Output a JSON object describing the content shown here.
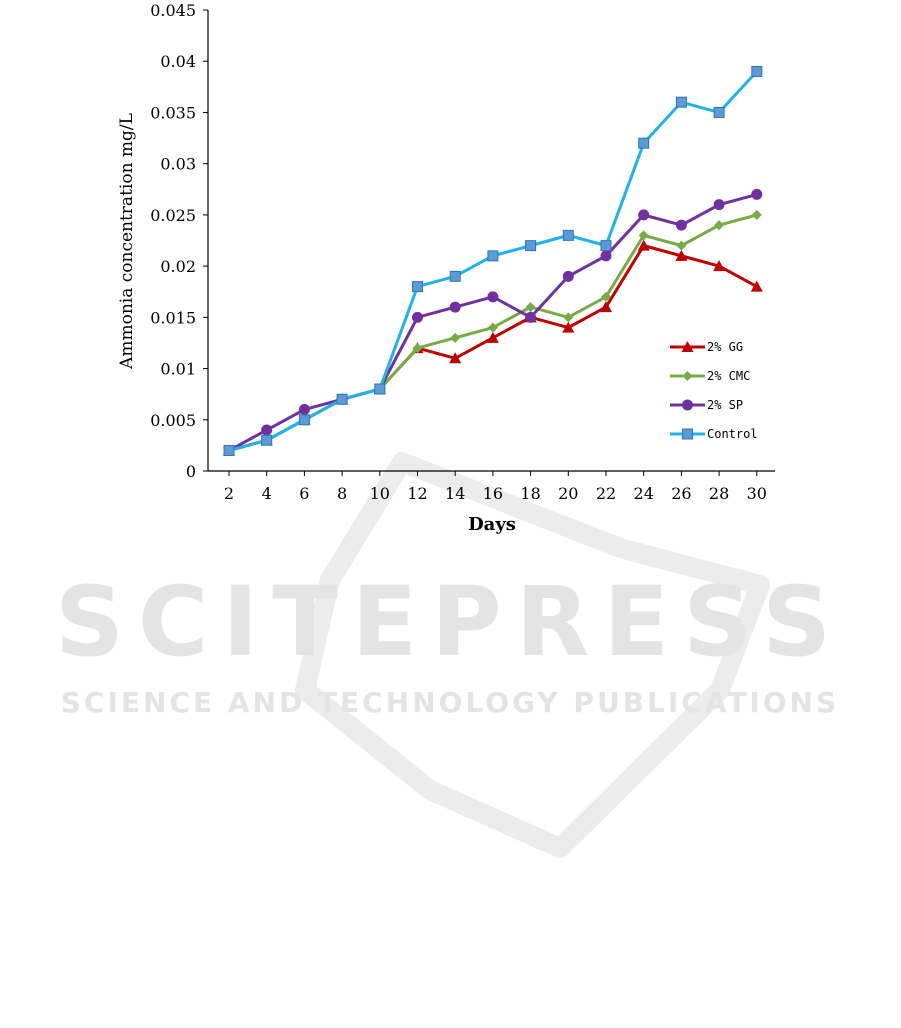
{
  "watermark": {
    "title": "SCITEPRESS",
    "subtitle": "SCIENCE AND TECHNOLOGY PUBLICATIONS"
  },
  "chart_data": {
    "type": "line",
    "title": "",
    "xlabel": "Days",
    "ylabel": "Ammonia concentration  mg/L",
    "x": [
      2,
      4,
      6,
      8,
      10,
      12,
      14,
      16,
      18,
      20,
      22,
      24,
      26,
      28,
      30
    ],
    "x_tick_labels": [
      "2",
      "4",
      "6",
      "8",
      "10",
      "12",
      "14",
      "16",
      "18",
      "20",
      "22",
      "24",
      "26",
      "28",
      "30"
    ],
    "ylim": [
      0,
      0.045
    ],
    "y_ticks": [
      0,
      0.005,
      0.01,
      0.015,
      0.02,
      0.025,
      0.03,
      0.035,
      0.04,
      0.045
    ],
    "y_tick_labels": [
      "0",
      "0.005",
      "0.01",
      "0.015",
      "0.02",
      "0.025",
      "0.03",
      "0.035",
      "0.04",
      "0.045"
    ],
    "grid": false,
    "legend_position": "lower-right",
    "series": [
      {
        "name": "2% GG",
        "color": "#c00000",
        "marker": "triangle",
        "values": [
          0.002,
          0.003,
          0.005,
          0.007,
          0.008,
          0.012,
          0.011,
          0.013,
          0.015,
          0.014,
          0.016,
          0.022,
          0.021,
          0.02,
          0.018
        ]
      },
      {
        "name": "2% CMC",
        "color": "#77ac45",
        "marker": "diamond",
        "values": [
          0.002,
          0.003,
          0.005,
          0.007,
          0.008,
          0.012,
          0.013,
          0.014,
          0.016,
          0.015,
          0.017,
          0.023,
          0.022,
          0.024,
          0.025
        ]
      },
      {
        "name": "2% SP",
        "color": "#7030a0",
        "marker": "circle",
        "values": [
          0.002,
          0.004,
          0.006,
          0.007,
          0.008,
          0.015,
          0.016,
          0.017,
          0.015,
          0.019,
          0.021,
          0.025,
          0.024,
          0.026,
          0.027
        ]
      },
      {
        "name": "Control",
        "color": "#1eb4eb",
        "marker": "square",
        "values": [
          0.002,
          0.003,
          0.005,
          0.007,
          0.008,
          0.018,
          0.019,
          0.021,
          0.022,
          0.023,
          0.022,
          0.032,
          0.036,
          0.035,
          0.039
        ]
      }
    ]
  }
}
